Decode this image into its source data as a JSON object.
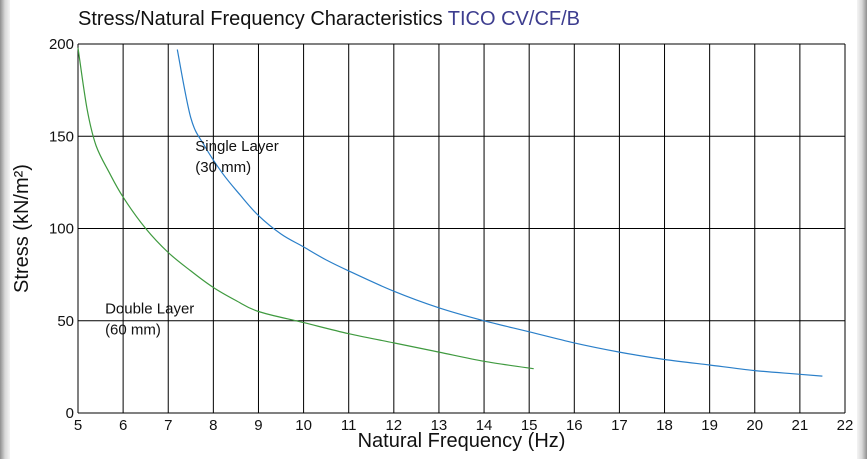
{
  "chart_data": {
    "type": "line",
    "title": "Stress/Natural Frequency Characteristics",
    "title_accent": "TICO CV/CF/B",
    "title_accent_color": "#3d3d8f",
    "xlabel": "Natural Frequency (Hz)",
    "ylabel": "Stress (kN/m²)",
    "xlim": [
      5,
      22
    ],
    "ylim": [
      0,
      200
    ],
    "x_ticks": [
      5,
      6,
      7,
      8,
      9,
      10,
      11,
      12,
      13,
      14,
      15,
      16,
      17,
      18,
      19,
      20,
      21,
      22
    ],
    "y_ticks": [
      0,
      50,
      100,
      150,
      200
    ],
    "grid": true,
    "legend": "none",
    "series": [
      {
        "name": "Single Layer",
        "color": "#2a7fc9",
        "x": [
          7.2,
          7.5,
          7.8,
          8.2,
          8.6,
          9.0,
          9.5,
          10.0,
          10.5,
          11.0,
          12.0,
          13.0,
          14.0,
          15.0,
          16.0,
          17.0,
          18.0,
          19.0,
          20.0,
          21.0,
          21.5
        ],
        "y": [
          197,
          160,
          145,
          130,
          118,
          107,
          97,
          90,
          83,
          77,
          66,
          57,
          50,
          44,
          38,
          33,
          29,
          26,
          23,
          21,
          20
        ]
      },
      {
        "name": "Double Layer",
        "color": "#3f9a3f",
        "x": [
          5.0,
          5.2,
          5.4,
          5.7,
          6.0,
          6.5,
          7.0,
          7.5,
          8.0,
          8.5,
          9.0,
          10.0,
          11.0,
          12.0,
          13.0,
          14.0,
          15.1
        ],
        "y": [
          198,
          165,
          145,
          130,
          117,
          100,
          87,
          77,
          68,
          61,
          55,
          49,
          43,
          38,
          33,
          28,
          24
        ]
      }
    ],
    "annotations": [
      {
        "line1": "Single Layer",
        "line2": "(30 mm)",
        "x": 7.6,
        "y": 142
      },
      {
        "line1": "Double Layer",
        "line2": "(60 mm)",
        "x": 5.6,
        "y": 54
      }
    ]
  }
}
